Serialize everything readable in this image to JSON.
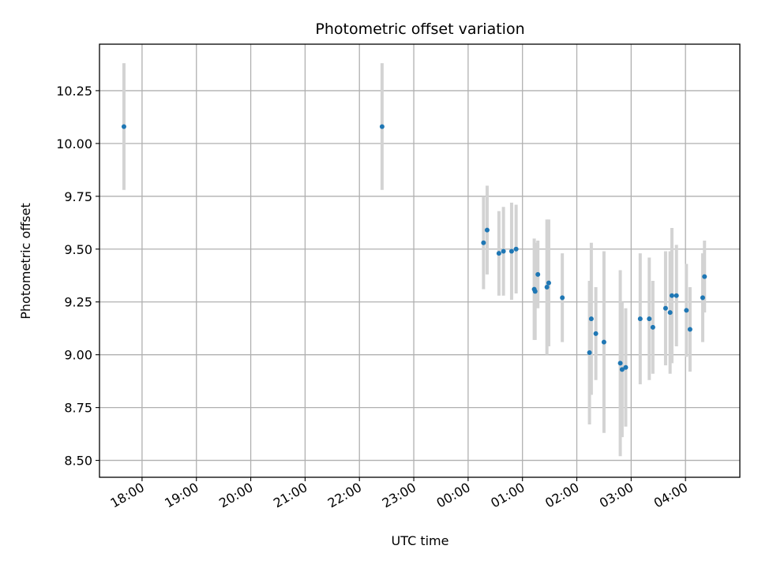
{
  "chart_data": {
    "type": "scatter",
    "title": "Photometric offset variation",
    "xlabel": "UTC time",
    "ylabel": "Photometric offset",
    "grid": true,
    "legend": "none",
    "x_unit": "UTC",
    "x_tick_labels": [
      "18:00",
      "19:00",
      "20:00",
      "21:00",
      "22:00",
      "23:00",
      "00:00",
      "01:00",
      "02:00",
      "03:00",
      "04:00"
    ],
    "y_tick_labels": [
      "8.50",
      "8.75",
      "9.00",
      "9.25",
      "9.50",
      "9.75",
      "10.00",
      "10.25"
    ],
    "xlim": [
      "17:13",
      "05:00"
    ],
    "ylim": [
      8.42,
      10.47
    ],
    "colors": {
      "points": "#1f77b4",
      "errorbars": "#d3d3d3"
    },
    "points": [
      {
        "t": "17:40",
        "y": 10.08,
        "err": 0.3
      },
      {
        "t": "22:25",
        "y": 10.08,
        "err": 0.3
      },
      {
        "t": "00:17",
        "y": 9.53,
        "err": 0.22
      },
      {
        "t": "00:21",
        "y": 9.59,
        "err": 0.21
      },
      {
        "t": "00:34",
        "y": 9.48,
        "err": 0.2
      },
      {
        "t": "00:39",
        "y": 9.49,
        "err": 0.21
      },
      {
        "t": "00:48",
        "y": 9.49,
        "err": 0.23
      },
      {
        "t": "00:53",
        "y": 9.5,
        "err": 0.21
      },
      {
        "t": "01:13",
        "y": 9.31,
        "err": 0.24
      },
      {
        "t": "01:14",
        "y": 9.3,
        "err": 0.23
      },
      {
        "t": "01:17",
        "y": 9.38,
        "err": 0.16
      },
      {
        "t": "01:27",
        "y": 9.32,
        "err": 0.32
      },
      {
        "t": "01:29",
        "y": 9.34,
        "err": 0.3
      },
      {
        "t": "01:44",
        "y": 9.27,
        "err": 0.21
      },
      {
        "t": "02:14",
        "y": 9.01,
        "err": 0.34
      },
      {
        "t": "02:16",
        "y": 9.17,
        "err": 0.36
      },
      {
        "t": "02:21",
        "y": 9.1,
        "err": 0.22
      },
      {
        "t": "02:30",
        "y": 9.06,
        "err": 0.43
      },
      {
        "t": "02:48",
        "y": 8.96,
        "err": 0.44
      },
      {
        "t": "02:50",
        "y": 8.93,
        "err": 0.32
      },
      {
        "t": "02:54",
        "y": 8.94,
        "err": 0.28
      },
      {
        "t": "03:10",
        "y": 9.17,
        "err": 0.31
      },
      {
        "t": "03:20",
        "y": 9.17,
        "err": 0.29
      },
      {
        "t": "03:24",
        "y": 9.13,
        "err": 0.22
      },
      {
        "t": "03:38",
        "y": 9.22,
        "err": 0.27
      },
      {
        "t": "03:43",
        "y": 9.2,
        "err": 0.29
      },
      {
        "t": "03:45",
        "y": 9.28,
        "err": 0.32
      },
      {
        "t": "03:50",
        "y": 9.28,
        "err": 0.24
      },
      {
        "t": "04:01",
        "y": 9.21,
        "err": 0.22
      },
      {
        "t": "04:05",
        "y": 9.12,
        "err": 0.2
      },
      {
        "t": "04:19",
        "y": 9.27,
        "err": 0.21
      },
      {
        "t": "04:21",
        "y": 9.37,
        "err": 0.17
      }
    ]
  }
}
